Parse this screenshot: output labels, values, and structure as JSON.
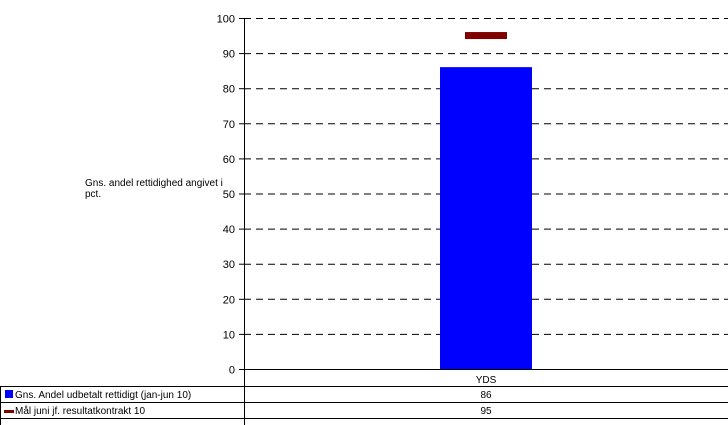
{
  "chart_data": {
    "type": "bar",
    "ylabel": "Gns. andel rettidighed angivet i pct.",
    "categories": [
      "YDS"
    ],
    "ylim": [
      0,
      100
    ],
    "yticks": [
      0,
      10,
      20,
      30,
      40,
      50,
      60,
      70,
      80,
      90,
      100
    ],
    "grid": true,
    "series": [
      {
        "name": "Gns. Andel udbetalt rettidigt (jan-jun 10)",
        "kind": "bar",
        "color": "#0000ff",
        "values": [
          86
        ]
      },
      {
        "name": "Mål juni jf. resultatkontrakt 10",
        "kind": "marker",
        "color": "#800000",
        "values": [
          95
        ]
      }
    ]
  },
  "table": {
    "rows": [
      {
        "label": "Gns. Andel udbetalt rettidigt (jan-jun 10)",
        "value": "86"
      },
      {
        "label": "Mål juni jf. resultatkontrakt 10",
        "value": "95"
      }
    ]
  }
}
